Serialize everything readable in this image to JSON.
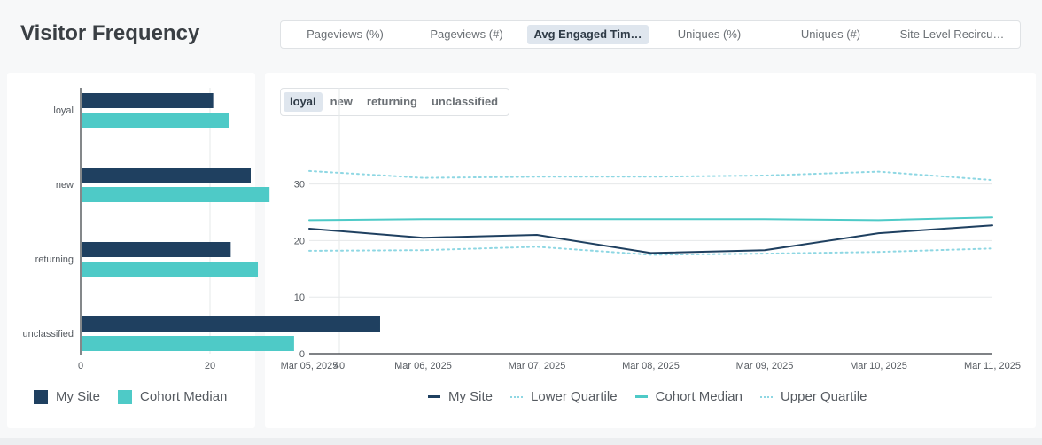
{
  "header": {
    "title": "Visitor Frequency",
    "metric_tabs": [
      {
        "label": "Pageviews (%)",
        "active": false
      },
      {
        "label": "Pageviews (#)",
        "active": false
      },
      {
        "label": "Avg Engaged Tim…",
        "active": true
      },
      {
        "label": "Uniques (%)",
        "active": false
      },
      {
        "label": "Uniques (#)",
        "active": false
      },
      {
        "label": "Site Level Recircu…",
        "active": false
      }
    ]
  },
  "segment_tabs": [
    {
      "label": "loyal",
      "active": true
    },
    {
      "label": "new",
      "active": false
    },
    {
      "label": "returning",
      "active": false
    },
    {
      "label": "unclassified",
      "active": false
    }
  ],
  "colors": {
    "my_site": "#1f4060",
    "cohort_median": "#4ecac7",
    "quartile": "#8ed7e3",
    "grid": "#e6e8ea",
    "axis": "#33383d"
  },
  "chart_data": [
    {
      "type": "bar",
      "orientation": "horizontal",
      "categories": [
        "loyal",
        "new",
        "returning",
        "unclassified"
      ],
      "series": [
        {
          "name": "My Site",
          "values": [
            20.5,
            26.3,
            23.2,
            46.3
          ]
        },
        {
          "name": "Cohort Median",
          "values": [
            23.0,
            29.2,
            27.4,
            33.0
          ]
        }
      ],
      "xlim": [
        0,
        50
      ],
      "xticks": [
        0,
        20,
        40
      ],
      "grid": true,
      "legend": "bottom-left"
    },
    {
      "type": "line",
      "x": [
        "Mar 05, 2025",
        "Mar 06, 2025",
        "Mar 07, 2025",
        "Mar 08, 2025",
        "Mar 09, 2025",
        "Mar 10, 2025",
        "Mar 11, 2025"
      ],
      "series": [
        {
          "name": "My Site",
          "values": [
            22.1,
            20.5,
            21.0,
            17.8,
            18.3,
            21.3,
            22.7
          ],
          "style": "solid"
        },
        {
          "name": "Lower Quartile",
          "values": [
            18.2,
            18.3,
            18.9,
            17.5,
            17.7,
            18.0,
            18.6
          ],
          "style": "dotted"
        },
        {
          "name": "Cohort Median",
          "values": [
            23.6,
            23.8,
            23.8,
            23.8,
            23.8,
            23.6,
            24.1
          ],
          "style": "solid"
        },
        {
          "name": "Upper Quartile",
          "values": [
            32.3,
            31.1,
            31.3,
            31.3,
            31.5,
            32.2,
            30.7
          ],
          "style": "dotted"
        }
      ],
      "ylim": [
        0,
        40
      ],
      "yticks": [
        0,
        10,
        20,
        30
      ],
      "grid": true,
      "legend": "bottom-center"
    }
  ]
}
